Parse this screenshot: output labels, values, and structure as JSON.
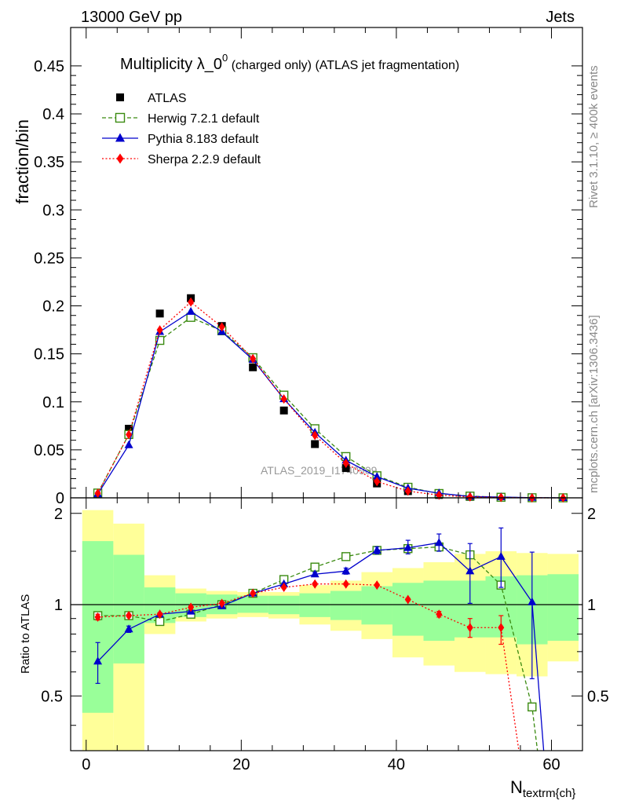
{
  "header": {
    "left": "13000 GeV pp",
    "right": "Jets",
    "side_top": "Rivet 3.1.10, ≥ 400k events",
    "side_bottom": "mcplots.cern.ch [arXiv:1306.3436]"
  },
  "colors": {
    "atlas": "#000000",
    "herwig": "#3a8a10",
    "pythia": "#0000cc",
    "sherpa": "#ff0000",
    "band_inner": "#99ff99",
    "band_outer": "#ffff99",
    "watermark": "#999999"
  },
  "chart_data": [
    {
      "type": "scatter",
      "title_main": "Multiplicity λ_0",
      "title_sup": "0",
      "title_rest": " (charged only) (ATLAS jet fragmentation)",
      "ylabel": "fraction/bin",
      "xlim": [
        -2,
        64
      ],
      "ylim": [
        0,
        0.49
      ],
      "yticks": [
        0,
        0.05,
        0.1,
        0.15,
        0.2,
        0.25,
        0.3,
        0.35,
        0.4,
        0.45
      ],
      "ytick_labels": [
        "0",
        "0.05",
        "0.1",
        "0.15",
        "0.2",
        "0.25",
        "0.3",
        "0.35",
        "0.4",
        "0.45"
      ],
      "watermark": "ATLAS_2019_I1740909",
      "legend_position": "top-left",
      "x": [
        1.5,
        5.5,
        9.5,
        13.5,
        17.5,
        21.5,
        25.5,
        29.5,
        33.5,
        37.5,
        41.5,
        45.5,
        49.5,
        53.5,
        57.5,
        61.5
      ],
      "series": [
        {
          "name": "ATLAS",
          "marker": "square-filled",
          "values": [
            0.005,
            0.072,
            0.192,
            0.208,
            0.179,
            0.136,
            0.091,
            0.056,
            0.031,
            0.015,
            0.007,
            0.003,
            0.001,
            0.0005,
            0.0002,
            0.0001
          ]
        },
        {
          "name": "Herwig 7.2.1 default",
          "marker": "square-open",
          "line": "dashed",
          "values": [
            0.005,
            0.066,
            0.164,
            0.188,
            0.174,
            0.146,
            0.107,
            0.072,
            0.043,
            0.023,
            0.011,
            0.0045,
            0.0018,
            0.0006,
            0.0001,
            4e-05
          ]
        },
        {
          "name": "Pythia 8.183 default",
          "marker": "triangle",
          "line": "solid",
          "values": [
            0.004,
            0.055,
            0.173,
            0.194,
            0.173,
            0.144,
            0.103,
            0.068,
            0.039,
            0.022,
            0.01,
            0.0048,
            0.0014,
            0.0008,
            0.0002,
            2e-05
          ]
        },
        {
          "name": "Sherpa 2.2.9 default",
          "marker": "diamond",
          "line": "dotted",
          "values": [
            0.0048,
            0.066,
            0.175,
            0.204,
            0.178,
            0.145,
            0.103,
            0.065,
            0.036,
            0.017,
            0.007,
            0.0028,
            0.0009,
            0.0004,
            5e-05,
            1e-05
          ]
        }
      ]
    },
    {
      "type": "scatter",
      "ylabel": "Ratio to ATLAS",
      "xlabel_main": "N",
      "xlabel_sub": "textrm{ch}",
      "xlim": [
        -2,
        64
      ],
      "ylim": [
        0.33,
        2.25
      ],
      "xticks": [
        0,
        20,
        40,
        60
      ],
      "xtick_labels": [
        "0",
        "20",
        "40",
        "60"
      ],
      "yticks": [
        0.5,
        1,
        2
      ],
      "ytick_labels": [
        "0.5",
        "1",
        "2"
      ],
      "bin_edges": [
        -0.5,
        3.5,
        7.5,
        11.5,
        15.5,
        19.5,
        23.5,
        27.5,
        31.5,
        35.5,
        39.5,
        43.5,
        47.5,
        51.5,
        55.5,
        59.5,
        63.5
      ],
      "band_inner": [
        [
          0.44,
          1.62
        ],
        [
          0.64,
          1.46
        ],
        [
          0.87,
          1.14
        ],
        [
          0.91,
          1.09
        ],
        [
          0.93,
          1.08
        ],
        [
          0.94,
          1.07
        ],
        [
          0.93,
          1.07
        ],
        [
          0.91,
          1.09
        ],
        [
          0.89,
          1.11
        ],
        [
          0.86,
          1.15
        ],
        [
          0.79,
          1.18
        ],
        [
          0.76,
          1.2
        ],
        [
          0.78,
          1.2
        ],
        [
          0.78,
          1.24
        ],
        [
          0.74,
          1.25
        ],
        [
          0.76,
          1.26
        ]
      ],
      "band_outer": [
        [
          0.33,
          2.05
        ],
        [
          0.33,
          1.85
        ],
        [
          0.8,
          1.25
        ],
        [
          0.88,
          1.13
        ],
        [
          0.9,
          1.11
        ],
        [
          0.91,
          1.1
        ],
        [
          0.9,
          1.1
        ],
        [
          0.86,
          1.16
        ],
        [
          0.82,
          1.2
        ],
        [
          0.77,
          1.28
        ],
        [
          0.67,
          1.32
        ],
        [
          0.63,
          1.38
        ],
        [
          0.6,
          1.47
        ],
        [
          0.59,
          1.5
        ],
        [
          0.58,
          1.48
        ],
        [
          0.65,
          1.47
        ]
      ],
      "series": [
        {
          "name": "Herwig 7.2.1 default",
          "x": [
            1.5,
            5.5,
            9.5,
            13.5,
            17.5,
            21.5,
            25.5,
            29.5,
            33.5,
            37.5,
            41.5,
            45.5,
            49.5,
            53.5,
            57.5,
            58.2
          ],
          "values": [
            0.92,
            0.92,
            0.88,
            0.93,
            1.0,
            1.09,
            1.21,
            1.33,
            1.44,
            1.51,
            1.53,
            1.55,
            1.46,
            1.16,
            0.46,
            0.33
          ]
        },
        {
          "name": "Pythia 8.183 default",
          "x": [
            1.5,
            5.5,
            9.5,
            13.5,
            17.5,
            21.5,
            25.5,
            29.5,
            33.5,
            37.5,
            41.5,
            45.5,
            49.5,
            53.5,
            57.5,
            59.0
          ],
          "values": [
            0.65,
            0.83,
            0.93,
            0.95,
            0.99,
            1.09,
            1.17,
            1.26,
            1.29,
            1.51,
            1.54,
            1.6,
            1.29,
            1.44,
            1.02,
            0.33
          ],
          "err_lo": [
            0.1,
            0.02,
            0.01,
            0.01,
            0.01,
            0.01,
            0.01,
            0.02,
            0.03,
            0.04,
            0.07,
            0.1,
            0.28,
            0.3,
            0.45,
            0
          ],
          "err_hi": [
            0.1,
            0.02,
            0.01,
            0.01,
            0.01,
            0.01,
            0.01,
            0.02,
            0.03,
            0.04,
            0.09,
            0.11,
            0.3,
            0.35,
            0.47,
            0
          ]
        },
        {
          "name": "Sherpa 2.2.9 default",
          "x": [
            1.5,
            5.5,
            9.5,
            13.5,
            17.5,
            21.5,
            25.5,
            29.5,
            33.5,
            37.5,
            41.5,
            45.5,
            49.5,
            53.5,
            55.8
          ],
          "values": [
            0.91,
            0.92,
            0.93,
            0.98,
            1.01,
            1.09,
            1.14,
            1.17,
            1.17,
            1.16,
            1.04,
            0.93,
            0.84,
            0.84,
            0.33
          ],
          "err_lo": [
            0.02,
            0.01,
            0.01,
            0.01,
            0.01,
            0.01,
            0.01,
            0.01,
            0.01,
            0.01,
            0.01,
            0.02,
            0.06,
            0.1,
            0
          ],
          "err_hi": [
            0.02,
            0.01,
            0.01,
            0.01,
            0.01,
            0.01,
            0.01,
            0.01,
            0.01,
            0.01,
            0.01,
            0.02,
            0.06,
            0.08,
            0
          ]
        }
      ]
    }
  ]
}
